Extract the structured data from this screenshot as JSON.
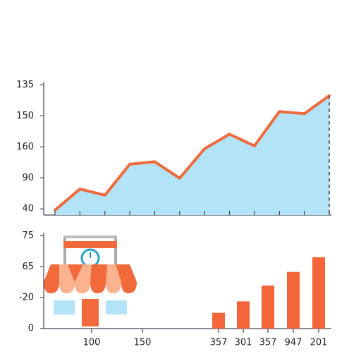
{
  "chart_data": [
    {
      "type": "area",
      "color": "#f06a3c",
      "fill": "#b3e3f6",
      "categories": [
        null,
        null,
        null,
        null,
        null,
        null,
        null,
        null,
        null,
        null,
        null,
        null
      ],
      "values": [
        -0.04,
        0.64,
        0.44,
        1.44,
        1.52,
        0.99,
        1.94,
        2.41,
        2.03,
        3.14,
        3.07,
        3.65
      ],
      "ylim": [
        -0.2,
        4.1
      ],
      "yticks": [
        {
          "value": 0,
          "label": "40"
        },
        {
          "value": 1,
          "label": "90"
        },
        {
          "value": 2,
          "label": "160"
        },
        {
          "value": 3,
          "label": "150"
        },
        {
          "value": 4,
          "label": "135"
        }
      ]
    },
    {
      "type": "bar",
      "color": "#f5653a",
      "categories": [
        "100",
        "150",
        "357",
        "301",
        "357",
        "947",
        "201"
      ],
      "values": [
        null,
        null,
        0.51,
        0.88,
        1.39,
        1.83,
        2.31
      ],
      "ylim": [
        0,
        3.1
      ],
      "yticks": [
        {
          "value": 0,
          "label": "0"
        },
        {
          "value": 1,
          "label": "-20"
        },
        {
          "value": 2,
          "label": "65"
        },
        {
          "value": 3,
          "label": "75"
        }
      ]
    }
  ]
}
